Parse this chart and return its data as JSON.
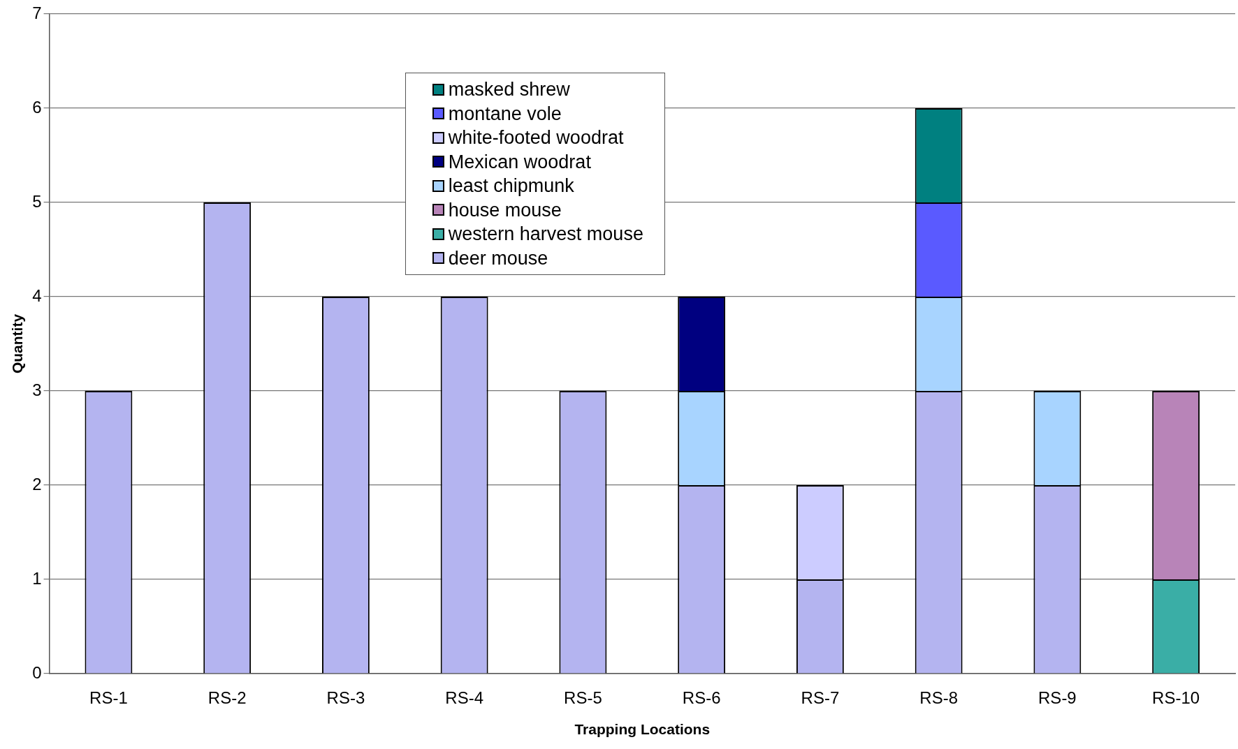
{
  "chart_data": {
    "type": "bar",
    "stacked": true,
    "xlabel": "Trapping Locations",
    "ylabel": "Quantity",
    "categories": [
      "RS-1",
      "RS-2",
      "RS-3",
      "RS-4",
      "RS-5",
      "RS-6",
      "RS-7",
      "RS-8",
      "RS-9",
      "RS-10"
    ],
    "series": [
      {
        "name": "deer mouse",
        "color": "#b4b4f0",
        "values": [
          3,
          5,
          4,
          4,
          3,
          2,
          1,
          3,
          2,
          null
        ]
      },
      {
        "name": "western harvest mouse",
        "color": "#3aaea6",
        "values": [
          null,
          null,
          null,
          null,
          null,
          null,
          null,
          null,
          null,
          1
        ]
      },
      {
        "name": "house mouse",
        "color": "#b884b8",
        "values": [
          null,
          null,
          null,
          null,
          null,
          null,
          null,
          null,
          null,
          2
        ]
      },
      {
        "name": "least chipmunk",
        "color": "#a8d4ff",
        "values": [
          null,
          null,
          null,
          null,
          null,
          1,
          null,
          1,
          1,
          null
        ]
      },
      {
        "name": "Mexican woodrat",
        "color": "#000080",
        "values": [
          null,
          null,
          null,
          null,
          null,
          1,
          null,
          null,
          null,
          null
        ]
      },
      {
        "name": "white-footed woodrat",
        "color": "#ccccff",
        "values": [
          null,
          null,
          null,
          null,
          null,
          null,
          1,
          null,
          null,
          null
        ]
      },
      {
        "name": "montane vole",
        "color": "#5a5aff",
        "values": [
          null,
          null,
          null,
          null,
          null,
          null,
          null,
          1,
          null,
          null
        ]
      },
      {
        "name": "masked shrew",
        "color": "#008080",
        "values": [
          null,
          null,
          null,
          null,
          null,
          null,
          null,
          1,
          null,
          null
        ]
      }
    ],
    "ylim": [
      0,
      7
    ],
    "yticks": [
      0,
      1,
      2,
      3,
      4,
      5,
      6,
      7
    ],
    "grid": "y",
    "legend": "top"
  }
}
